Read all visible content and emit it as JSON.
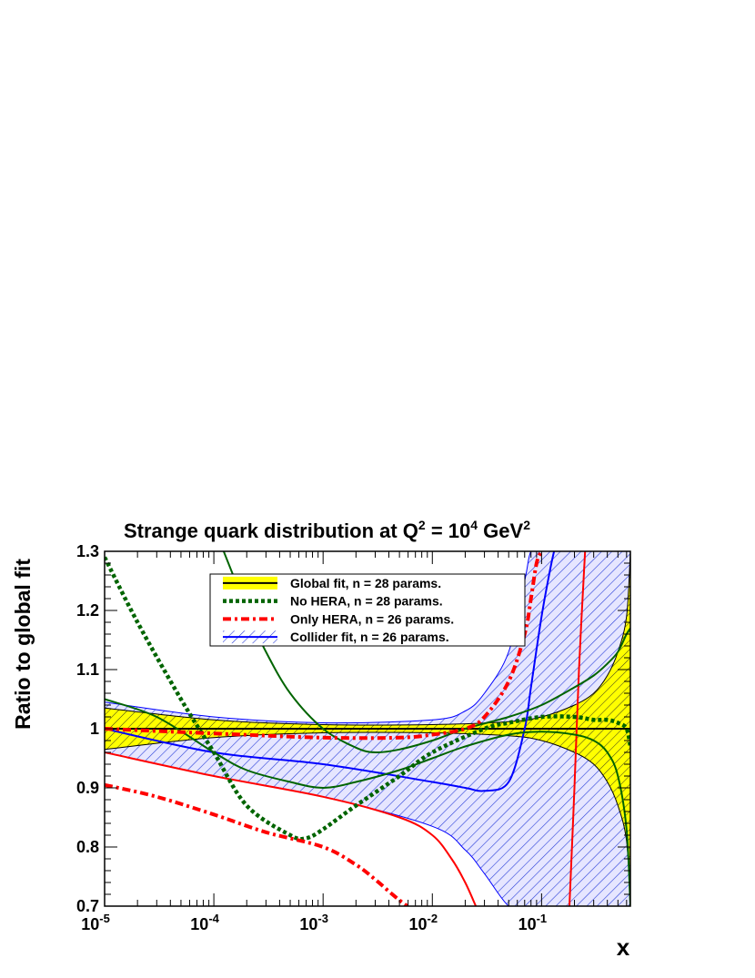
{
  "chart_data": {
    "type": "line",
    "title_main": "Strange quark distribution at Q",
    "title_q_exp": "2",
    "title_mid": " = 10",
    "title_q2_exp": "4",
    "title_unit": " GeV",
    "title_unit_exp": "2",
    "xlabel": "x",
    "ylabel": "Ratio to global fit",
    "xscale": "log",
    "xlim": [
      1e-05,
      0.65
    ],
    "ylim": [
      0.7,
      1.3
    ],
    "x_ticks": [
      {
        "base": "10",
        "exp": "-5"
      },
      {
        "base": "10",
        "exp": "-4"
      },
      {
        "base": "10",
        "exp": "-3"
      },
      {
        "base": "10",
        "exp": "-2"
      },
      {
        "base": "10",
        "exp": "-1"
      }
    ],
    "y_ticks": [
      "0.7",
      "0.8",
      "0.9",
      "1",
      "1.1",
      "1.2",
      "1.3"
    ],
    "legend_position": "top-center",
    "legend": [
      {
        "label": "Global fit, n = 28 params.",
        "style": "global"
      },
      {
        "label": "No HERA, n = 28 params.",
        "style": "nohera"
      },
      {
        "label": "Only HERA, n = 26 params.",
        "style": "onlyhera"
      },
      {
        "label": "Collider fit, n = 26 params.",
        "style": "collider"
      }
    ],
    "colors": {
      "global_band": "#ffff00",
      "global_line": "#000000",
      "nohera": "#006400",
      "onlyhera": "#ff0000",
      "collider": "#0000ff",
      "collider_fill": "#e6e6ff"
    },
    "series": [
      {
        "name": "Global fit band",
        "x": [
          1e-05,
          0.0001,
          0.001,
          0.01,
          0.05,
          0.1,
          0.2,
          0.3,
          0.4,
          0.5,
          0.6,
          0.65
        ],
        "upper": [
          1.035,
          1.015,
          1.007,
          1.007,
          1.012,
          1.02,
          1.04,
          1.06,
          1.09,
          1.13,
          1.19,
          1.3
        ],
        "lower": [
          0.965,
          0.985,
          0.993,
          0.993,
          0.988,
          0.98,
          0.96,
          0.94,
          0.91,
          0.87,
          0.81,
          0.7
        ]
      },
      {
        "name": "Global fit central",
        "x": [
          1e-05,
          0.65
        ],
        "y": [
          1.0,
          1.0
        ]
      },
      {
        "name": "No HERA central",
        "x": [
          1e-05,
          2e-05,
          5e-05,
          0.0001,
          0.0002,
          0.0005,
          0.0007,
          0.001,
          0.002,
          0.005,
          0.01,
          0.03,
          0.05,
          0.1,
          0.2,
          0.3,
          0.4,
          0.5,
          0.6,
          0.65
        ],
        "y": [
          1.29,
          1.18,
          1.05,
          0.96,
          0.87,
          0.82,
          0.815,
          0.83,
          0.87,
          0.92,
          0.96,
          1.0,
          1.01,
          1.02,
          1.02,
          1.015,
          1.015,
          1.01,
          1.0,
          0.97
        ]
      },
      {
        "name": "No HERA upper",
        "x": [
          0.000123,
          0.00015,
          0.0002,
          0.0003,
          0.0005,
          0.001,
          0.002,
          0.003,
          0.005,
          0.01,
          0.02,
          0.05,
          0.1,
          0.2,
          0.3,
          0.4,
          0.5,
          0.6,
          0.65
        ],
        "y": [
          1.3,
          1.26,
          1.2,
          1.13,
          1.06,
          1.0,
          0.968,
          0.96,
          0.965,
          0.98,
          1.0,
          1.02,
          1.04,
          1.07,
          1.09,
          1.11,
          1.13,
          1.16,
          1.17
        ]
      },
      {
        "name": "No HERA lower",
        "x": [
          1e-05,
          3e-05,
          0.0001,
          0.0002,
          0.0005,
          0.001,
          0.002,
          0.005,
          0.01,
          0.02,
          0.05,
          0.1,
          0.2,
          0.3,
          0.4,
          0.5,
          0.6,
          0.65
        ],
        "y": [
          1.05,
          1.02,
          0.96,
          0.93,
          0.91,
          0.9,
          0.91,
          0.93,
          0.95,
          0.97,
          0.99,
          0.995,
          0.99,
          0.98,
          0.96,
          0.92,
          0.83,
          0.7
        ]
      },
      {
        "name": "Only HERA central",
        "x": [
          1e-05,
          0.0001,
          0.001,
          0.005,
          0.01,
          0.02,
          0.03,
          0.05,
          0.07,
          0.08,
          0.09,
          0.1
        ],
        "y": [
          1.0,
          0.992,
          0.985,
          0.985,
          0.99,
          1.0,
          1.02,
          1.08,
          1.16,
          1.22,
          1.28,
          1.3
        ]
      },
      {
        "name": "Only HERA lower",
        "x": [
          1e-05,
          3e-05,
          0.0001,
          0.0003,
          0.001,
          0.002,
          0.003,
          0.004,
          0.005,
          0.0059
        ],
        "y": [
          0.905,
          0.885,
          0.855,
          0.825,
          0.8,
          0.77,
          0.745,
          0.725,
          0.71,
          0.7
        ]
      },
      {
        "name": "Collider fill band",
        "x": [
          1e-05,
          0.0001,
          0.001,
          0.01,
          0.02,
          0.03,
          0.05,
          0.07,
          0.08,
          0.1,
          0.2,
          0.3,
          0.5,
          0.65
        ],
        "upper": [
          1.045,
          1.02,
          1.01,
          1.015,
          1.03,
          1.06,
          1.13,
          1.25,
          1.3,
          1.3,
          1.3,
          1.3,
          1.3,
          1.3
        ],
        "lower": [
          0.96,
          0.92,
          0.885,
          0.835,
          0.795,
          0.755,
          0.7,
          0.7,
          0.7,
          0.7,
          0.7,
          0.7,
          0.7,
          0.7
        ]
      },
      {
        "name": "Collider central",
        "x": [
          1e-05,
          0.0001,
          0.001,
          0.01,
          0.02,
          0.03,
          0.05,
          0.07,
          0.08,
          0.1,
          0.12,
          0.13
        ],
        "y": [
          1.0,
          0.96,
          0.94,
          0.91,
          0.9,
          0.895,
          0.91,
          1.0,
          1.07,
          1.19,
          1.27,
          1.3
        ]
      },
      {
        "name": "Collider red edge",
        "x": [
          1e-05,
          0.0001,
          0.001,
          0.005,
          0.01,
          0.015,
          0.02,
          0.025
        ],
        "y": [
          0.96,
          0.92,
          0.885,
          0.85,
          0.82,
          0.78,
          0.74,
          0.7
        ]
      },
      {
        "name": "Vertical red",
        "x": [
          0.18,
          0.2,
          0.22,
          0.25
        ],
        "y": [
          0.7,
          0.9,
          1.1,
          1.3
        ]
      }
    ]
  }
}
